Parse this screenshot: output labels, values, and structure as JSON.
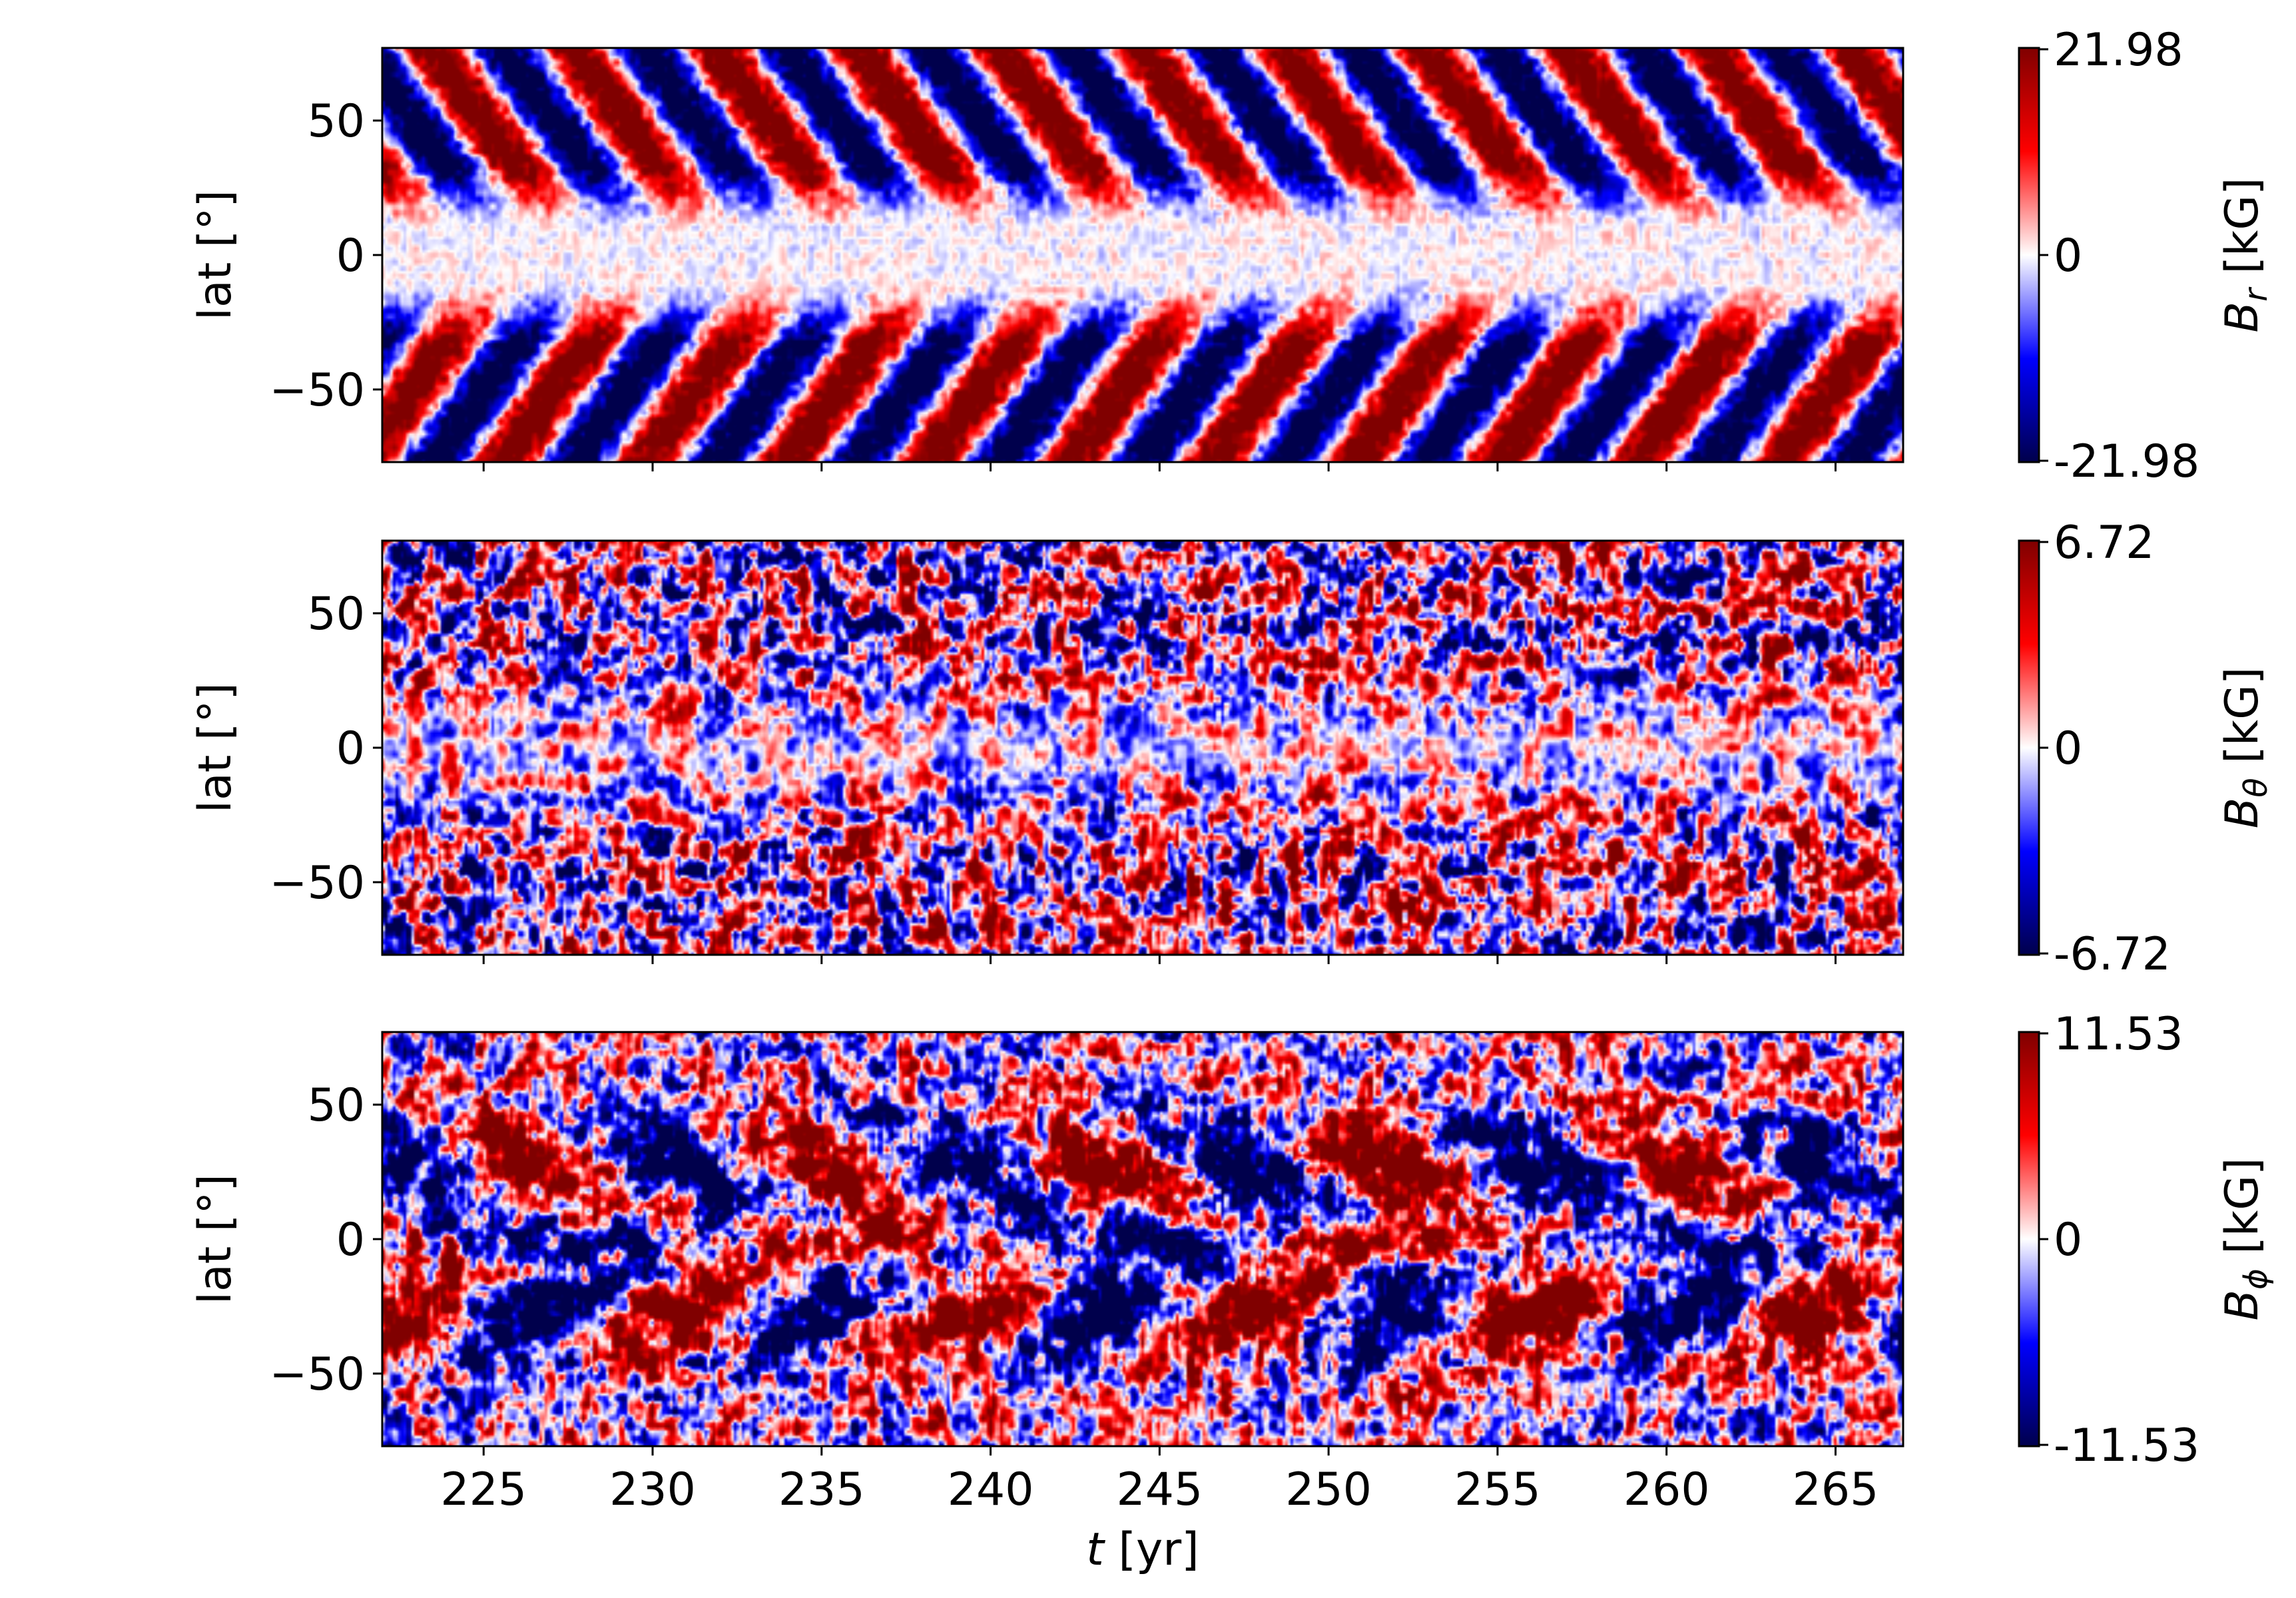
{
  "chart_data": [
    {
      "type": "heatmap",
      "quantity": "B_r",
      "ylabel": "lat [°]",
      "colorbar_label": {
        "symbol": "B",
        "sub": "r",
        "unit": " [kG]"
      },
      "colorbar_ticks": [
        "21.98",
        "0",
        "-21.98"
      ],
      "vmin": -21.98,
      "vmax": 21.98,
      "colormap": "seismic",
      "xlim": [
        222,
        267
      ],
      "ylim": [
        -77,
        77
      ],
      "yticks": [
        50,
        0,
        -50
      ],
      "ytick_labels": [
        "50",
        "0",
        "−50"
      ],
      "pattern": "butterfly",
      "cycle_period_yr": 4.2,
      "band_lat_deg": [
        25,
        75
      ]
    },
    {
      "type": "heatmap",
      "quantity": "B_theta",
      "ylabel": "lat [°]",
      "colorbar_label": {
        "symbol": "B",
        "sub": "θ",
        "unit": " [kG]"
      },
      "colorbar_ticks": [
        "6.72",
        "0",
        "-6.72"
      ],
      "vmin": -6.72,
      "vmax": 6.72,
      "colormap": "seismic",
      "xlim": [
        222,
        267
      ],
      "ylim": [
        -77,
        77
      ],
      "yticks": [
        50,
        0,
        -50
      ],
      "ytick_labels": [
        "50",
        "0",
        "−50"
      ],
      "pattern": "turbulent"
    },
    {
      "type": "heatmap",
      "quantity": "B_phi",
      "ylabel": "lat [°]",
      "xlabel": {
        "symbol": "t",
        "unit": " [yr]"
      },
      "xticks": [
        225,
        230,
        235,
        240,
        245,
        250,
        255,
        260,
        265
      ],
      "xtick_labels": [
        "225",
        "230",
        "235",
        "240",
        "245",
        "250",
        "255",
        "260",
        "265"
      ],
      "colorbar_label": {
        "symbol": "B",
        "sub": "ϕ",
        "unit": " [kG]"
      },
      "colorbar_ticks": [
        "11.53",
        "0",
        "-11.53"
      ],
      "vmin": -11.53,
      "vmax": 11.53,
      "colormap": "seismic",
      "xlim": [
        222,
        267
      ],
      "ylim": [
        -77,
        77
      ],
      "yticks": [
        50,
        0,
        -50
      ],
      "ytick_labels": [
        "50",
        "0",
        "−50"
      ],
      "pattern": "toroidal-bands",
      "cycle_period_yr": 8.4
    }
  ]
}
